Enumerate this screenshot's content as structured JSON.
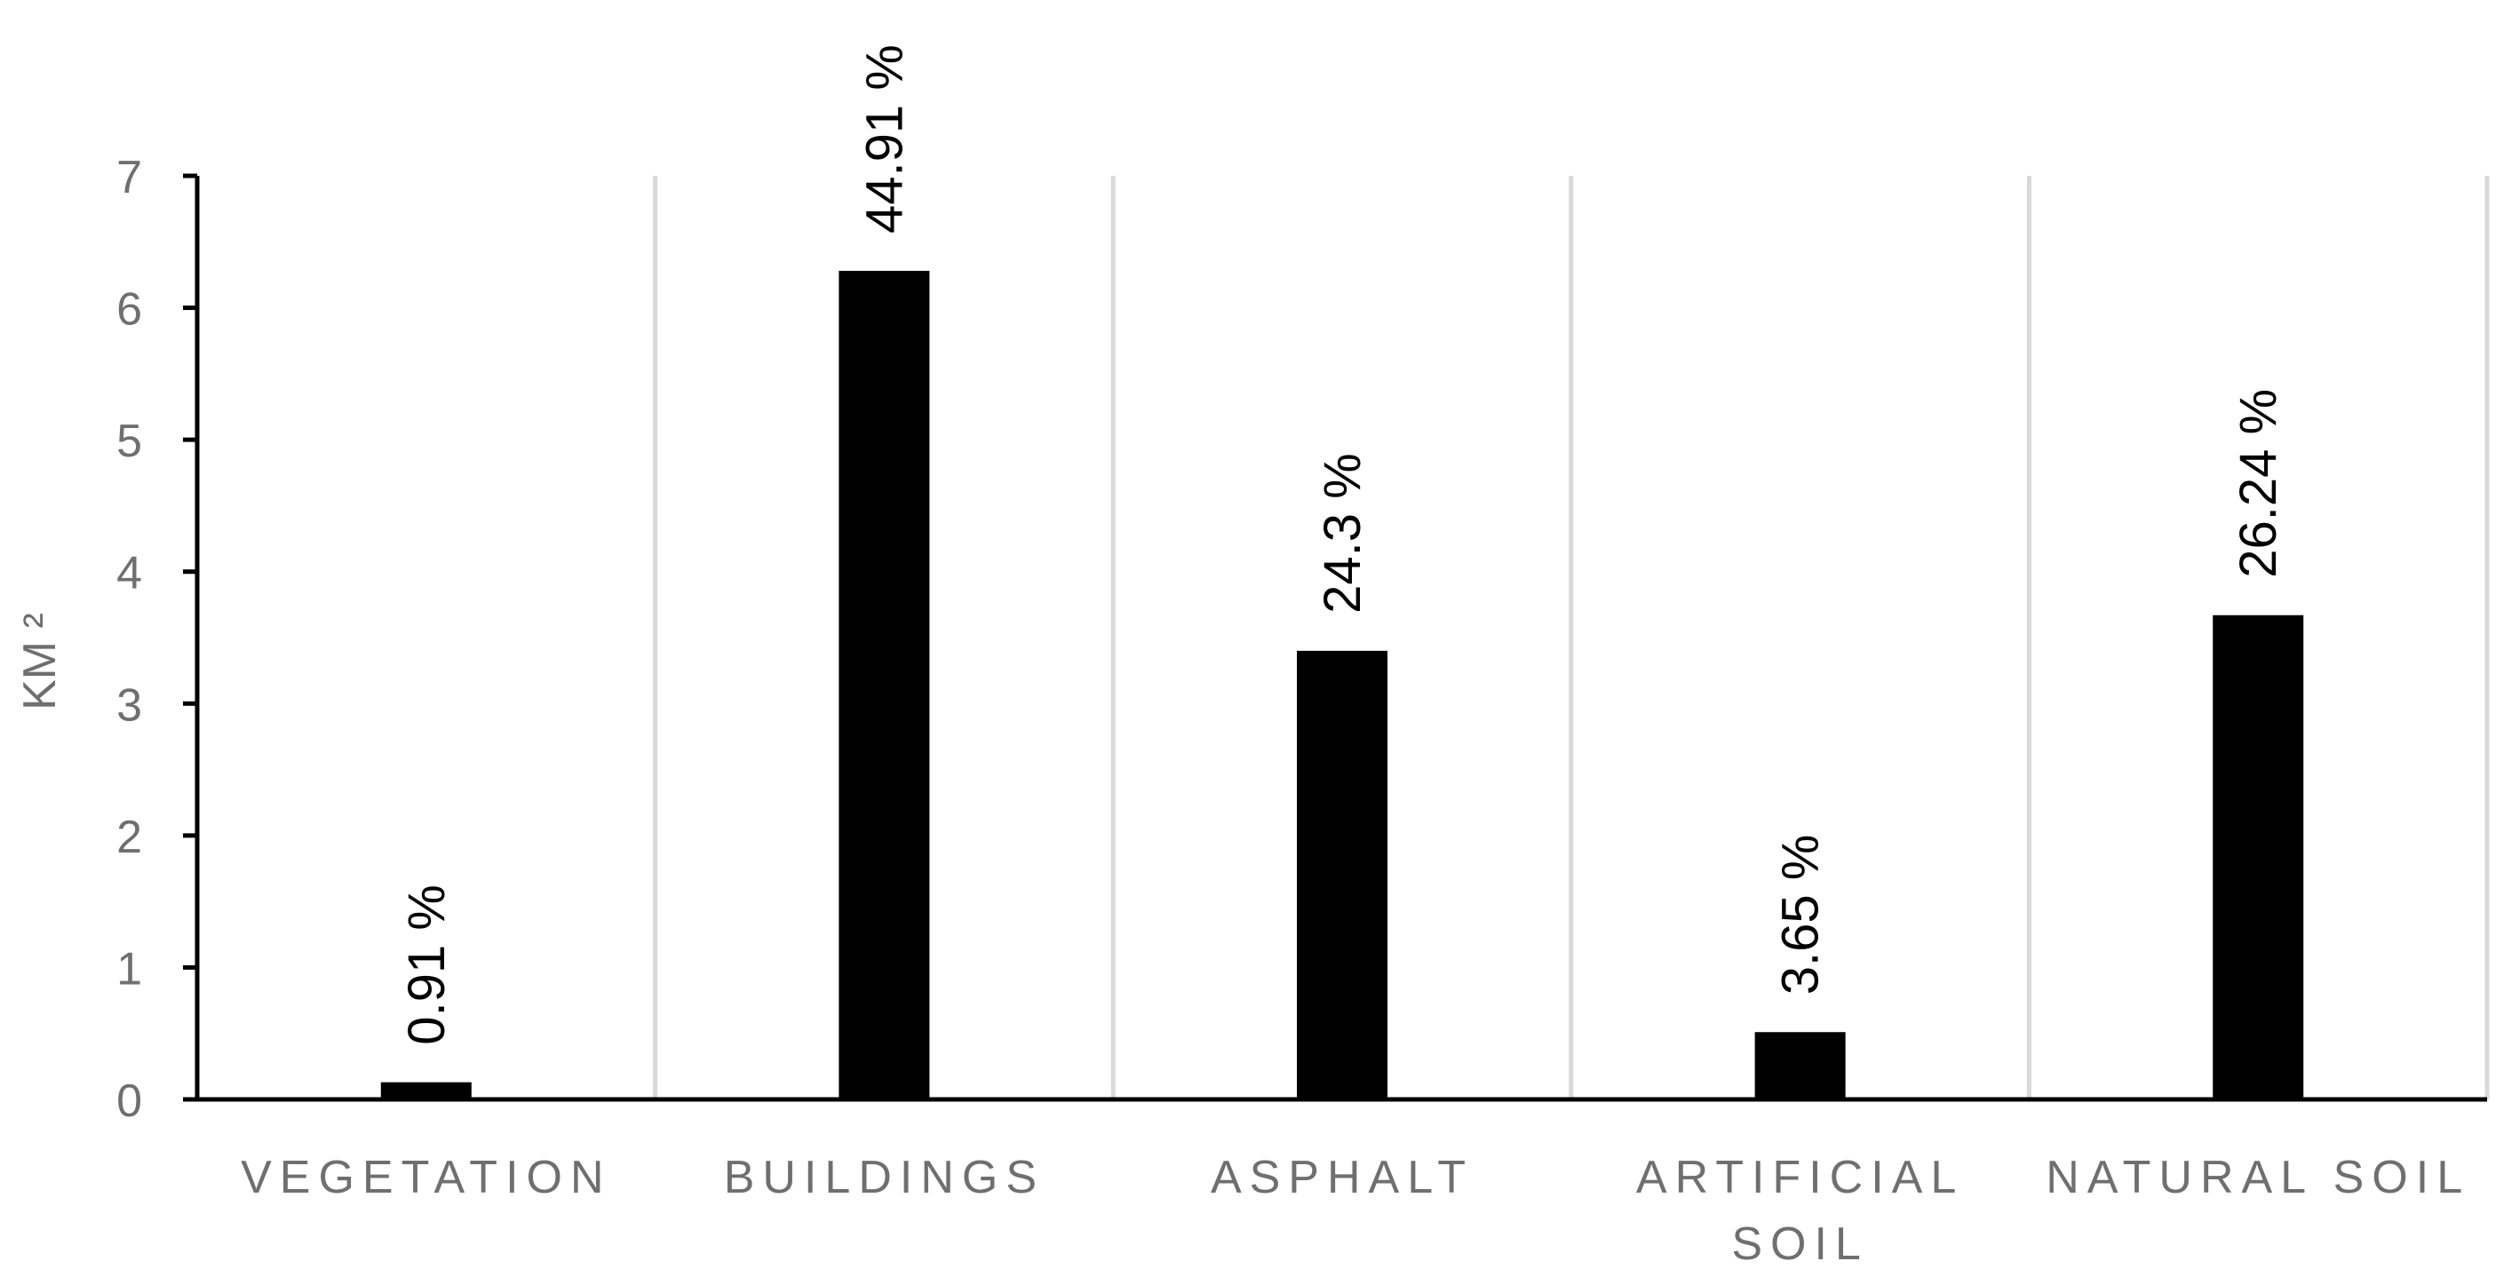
{
  "chart_data": {
    "type": "bar",
    "categories": [
      "VEGETATION",
      "BUILDINGS",
      "ASPHALT",
      "ARTIFICIAL SOIL",
      "NATURAL SOIL"
    ],
    "category_lines": [
      [
        "VEGETATION"
      ],
      [
        "BUILDINGS"
      ],
      [
        "ASPHALT"
      ],
      [
        "ARTIFICIAL",
        "SOIL"
      ],
      [
        "NATURAL SOIL"
      ]
    ],
    "values": [
      0.13,
      6.28,
      3.4,
      0.51,
      3.67
    ],
    "data_labels": [
      "0.91 %",
      "44.91 %",
      "24.3 %",
      "3.65 %",
      "26.24 %"
    ],
    "ylabel": "KM ²",
    "ylim": [
      0,
      7
    ],
    "yticks": [
      "0",
      "1",
      "2",
      "3",
      "4",
      "5",
      "6",
      "7"
    ],
    "grid": "vertical separators between categories",
    "colors": {
      "bar": "#000000",
      "axis": "#000000",
      "grid": "#d9d9d9",
      "tick_text": "#6f6f6f",
      "label_text": "#000000"
    }
  }
}
